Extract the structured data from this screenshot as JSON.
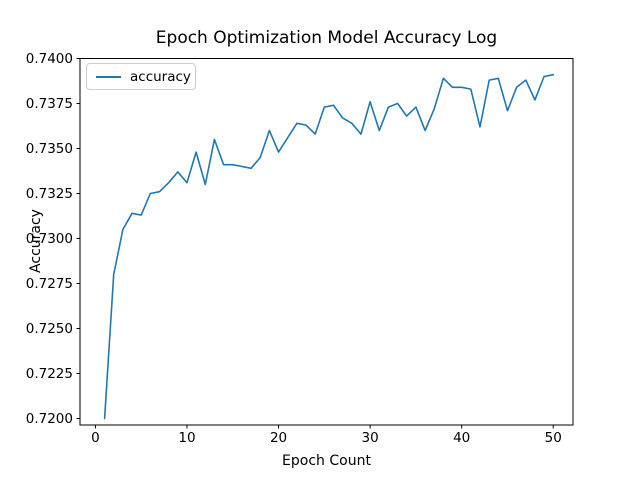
{
  "window": {
    "background": "#ffffff"
  },
  "chart_data": {
    "type": "line",
    "title": "Epoch Optimization Model Accuracy Log",
    "xlabel": "Epoch Count",
    "ylabel": "Accuracy",
    "grid": false,
    "legend_position": "upper left",
    "axis_color": "#000000",
    "xlim": [
      -1.6,
      52.2
    ],
    "ylim": [
      0.71963,
      0.74
    ],
    "xticks": [
      0,
      10,
      20,
      30,
      40,
      50
    ],
    "ytick_labels": [
      "0.7200",
      "0.7225",
      "0.7250",
      "0.7275",
      "0.7300",
      "0.7325",
      "0.7350",
      "0.7375",
      "0.7400"
    ],
    "x": [
      1,
      2,
      3,
      4,
      5,
      6,
      7,
      8,
      9,
      10,
      11,
      12,
      13,
      14,
      15,
      16,
      17,
      18,
      19,
      20,
      21,
      22,
      23,
      24,
      25,
      26,
      27,
      28,
      29,
      30,
      31,
      32,
      33,
      34,
      35,
      36,
      37,
      38,
      39,
      40,
      41,
      42,
      43,
      44,
      45,
      46,
      47,
      48,
      49,
      50
    ],
    "series": [
      {
        "name": "accuracy",
        "color": "#1f77b4",
        "values": [
          0.72,
          0.728,
          0.7305,
          0.7314,
          0.7313,
          0.7325,
          0.7326,
          0.7331,
          0.7337,
          0.7331,
          0.7348,
          0.733,
          0.7355,
          0.7341,
          0.7341,
          0.734,
          0.7339,
          0.7345,
          0.736,
          0.7348,
          0.7356,
          0.7364,
          0.7363,
          0.7358,
          0.7373,
          0.7374,
          0.7367,
          0.7364,
          0.7358,
          0.7376,
          0.736,
          0.7373,
          0.7375,
          0.7368,
          0.7373,
          0.736,
          0.7372,
          0.7389,
          0.7384,
          0.7384,
          0.7383,
          0.7362,
          0.7388,
          0.7389,
          0.7371,
          0.7384,
          0.7388,
          0.7377,
          0.739,
          0.7391
        ]
      }
    ]
  }
}
